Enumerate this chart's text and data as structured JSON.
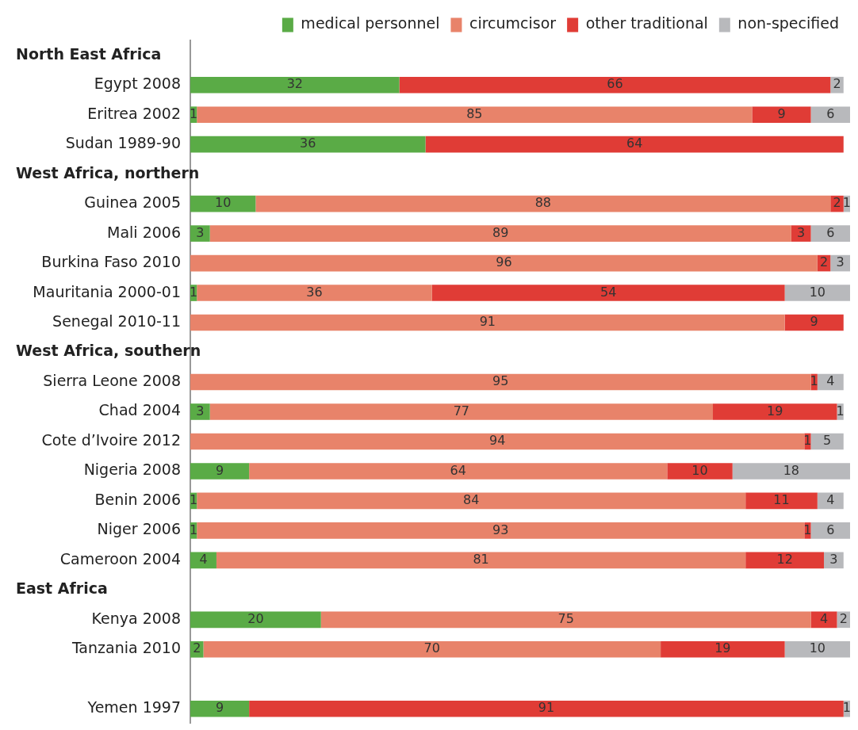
{
  "chart_data": {
    "type": "bar",
    "orientation": "horizontal",
    "stacked": true,
    "data_labels": true,
    "legend": "top",
    "annotations": [
      "North East Africa",
      "West Africa, northern",
      "West Africa, southern",
      "East Africa"
    ],
    "categories": [
      null,
      "Egypt 2008",
      "Eritrea 2002",
      "Sudan 1989-90",
      null,
      "Guinea 2005",
      "Mali 2006",
      "Burkina Faso 2010",
      "Mauritania 2000-01",
      "Senegal 2010-11",
      null,
      "Sierra Leone 2008",
      "Chad 2004",
      "Cote d’Ivoire 2012",
      "Nigeria 2008",
      "Benin 2006",
      "Niger 2006",
      "Cameroon 2004",
      null,
      "Kenya 2008",
      "Tanzania 2010",
      null,
      "Yemen 1997"
    ],
    "series": [
      {
        "name": "medical personnel",
        "color": "#5aab46",
        "values": [
          null,
          32,
          1,
          36,
          null,
          10,
          3,
          null,
          1,
          null,
          null,
          null,
          3,
          null,
          9,
          1,
          1,
          4,
          null,
          20,
          2,
          null,
          9
        ]
      },
      {
        "name": "circumcisor",
        "color": "#e8836a",
        "values": [
          null,
          null,
          85,
          null,
          null,
          88,
          89,
          96,
          36,
          91,
          null,
          95,
          77,
          94,
          64,
          84,
          93,
          81,
          null,
          75,
          70,
          null,
          null
        ]
      },
      {
        "name": "other traditional",
        "color": "#e03c36",
        "values": [
          null,
          66,
          9,
          64,
          null,
          2,
          3,
          2,
          54,
          9,
          null,
          1,
          19,
          1,
          10,
          11,
          1,
          12,
          null,
          4,
          19,
          null,
          91
        ]
      },
      {
        "name": "non-specified",
        "color": "#b8b9bc",
        "values": [
          null,
          2,
          6,
          null,
          null,
          1,
          6,
          3,
          10,
          null,
          null,
          4,
          1,
          5,
          18,
          4,
          6,
          3,
          null,
          2,
          10,
          null,
          1
        ]
      }
    ]
  }
}
